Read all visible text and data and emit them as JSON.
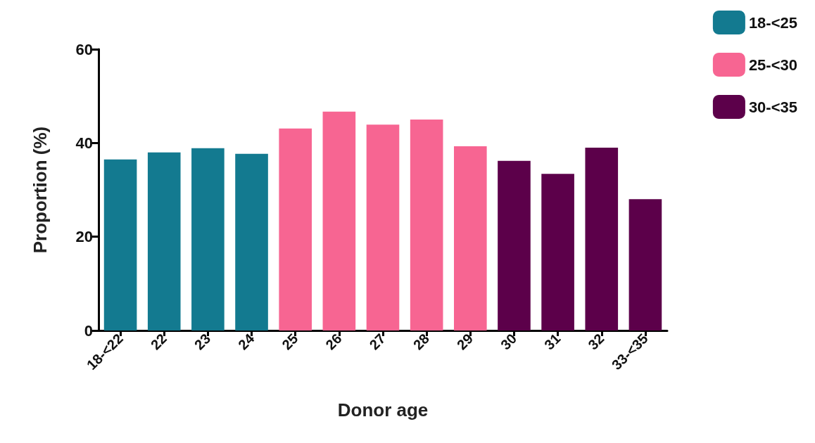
{
  "chart_data": {
    "type": "bar",
    "xlabel": "Donor age",
    "ylabel": "Proportion (%)",
    "categories": [
      "18-<22",
      "22",
      "23",
      "24",
      "25",
      "26",
      "27",
      "28",
      "29",
      "30",
      "31",
      "32",
      "33-<35"
    ],
    "stacked": true,
    "series": [
      {
        "name": "18-<25",
        "color": "#137a90",
        "values": [
          36.5,
          38.0,
          38.9,
          37.7,
          null,
          null,
          null,
          null,
          null,
          null,
          null,
          null,
          null
        ]
      },
      {
        "name": "25-<30",
        "color": "#f76592",
        "values": [
          null,
          null,
          null,
          null,
          43.1,
          46.7,
          43.9,
          45.0,
          39.3,
          null,
          null,
          null,
          null
        ]
      },
      {
        "name": "30-<35",
        "color": "#5c004a",
        "values": [
          null,
          null,
          null,
          null,
          null,
          null,
          null,
          null,
          null,
          36.2,
          33.4,
          39.0,
          28.0
        ]
      }
    ],
    "ylim": [
      0,
      60
    ],
    "yticks": [
      0,
      20,
      40,
      60
    ],
    "grid": false,
    "legend": "top right"
  }
}
